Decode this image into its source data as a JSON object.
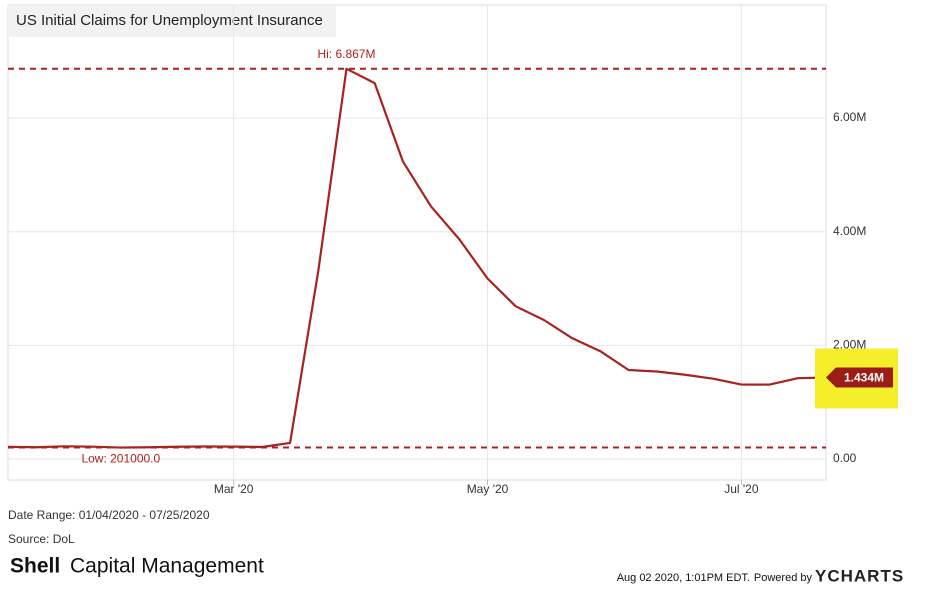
{
  "chart_data": {
    "type": "line",
    "title": "US Initial Claims for Unemployment Insurance",
    "categories": [
      null,
      null,
      null,
      null,
      null,
      null,
      null,
      null,
      "Mar '20",
      null,
      null,
      null,
      null,
      null,
      null,
      null,
      null,
      "May '20",
      null,
      null,
      null,
      null,
      null,
      null,
      null,
      null,
      "Jul '20",
      null,
      null,
      null
    ],
    "series": [
      {
        "name": "US Initial Claims for Unemployment Insurance",
        "color": "#a8231f",
        "values": [
          214000,
          207000,
          223000,
          216000,
          201000,
          206000,
          215000,
          220000,
          217000,
          211000,
          282000,
          3307000,
          6867000,
          6615000,
          5237000,
          4442000,
          3867000,
          3176000,
          2687000,
          2446000,
          2126000,
          1897000,
          1566000,
          1540000,
          1482000,
          1413000,
          1310000,
          1309000,
          1422000,
          1434000
        ]
      }
    ],
    "ylim": [
      -370000,
      7990000
    ],
    "yticks": [
      {
        "value": 0,
        "label": "0.00"
      },
      {
        "value": 2000000,
        "label": "2.00M"
      },
      {
        "value": 4000000,
        "label": "4.00M"
      },
      {
        "value": 6000000,
        "label": "6.00M"
      }
    ],
    "grid": true,
    "hi_label": "Hi: 6.867M",
    "low_label": "Low: 201000.0",
    "last_label": "1.434M"
  },
  "footer": {
    "date_range": "Date Range: 01/04/2020 - 07/25/2020",
    "source": "Source: DoL",
    "brand_bold": "Shell",
    "brand": "Capital Management",
    "timestamp": "Aug 02 2020, 1:01PM EDT.",
    "powered_by": "Powered by",
    "logo": "YCHARTS"
  }
}
